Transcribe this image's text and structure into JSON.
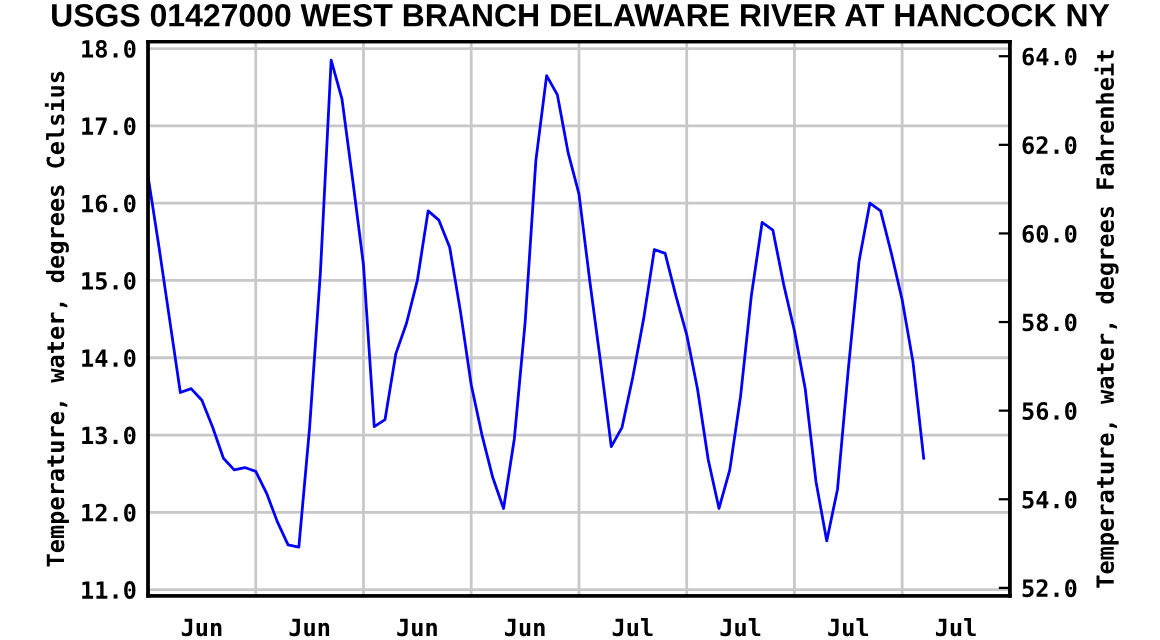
{
  "chart_data": {
    "type": "line",
    "title": "USGS 01427000 WEST BRANCH DELAWARE RIVER AT HANCOCK NY",
    "ylabel": "Temperature, water, degrees Celsius",
    "y2label": "Temperature, water, degrees Fahrenheit",
    "categories": [
      null,
      null,
      null,
      null,
      null,
      "Jun",
      null,
      null,
      null,
      null,
      null,
      null,
      null,
      null,
      null,
      "Jun",
      null,
      null,
      null,
      null,
      null,
      null,
      null,
      null,
      null,
      "Jun",
      null,
      null,
      null,
      null,
      null,
      null,
      null,
      null,
      null,
      "Jun",
      null,
      null,
      null,
      null,
      null,
      null,
      null,
      null,
      null,
      "Jul",
      null,
      null,
      null,
      null,
      null,
      null,
      null,
      null,
      null,
      "Jul",
      null,
      null,
      null,
      null,
      null,
      null,
      null,
      null,
      null,
      "Jul",
      null,
      null,
      null,
      null,
      null,
      null,
      null,
      null,
      null,
      "Jul",
      null,
      null,
      null,
      null,
      null
    ],
    "ylim": [
      10.92,
      18.09
    ],
    "yticks": [
      {
        "value": 11,
        "label": "11.0"
      },
      {
        "value": 12,
        "label": "12.0"
      },
      {
        "value": 13,
        "label": "13.0"
      },
      {
        "value": 14,
        "label": "14.0"
      },
      {
        "value": 15,
        "label": "15.0"
      },
      {
        "value": 16,
        "label": "16.0"
      },
      {
        "value": 17,
        "label": "17.0"
      },
      {
        "value": 18,
        "label": "18.0"
      }
    ],
    "y2lim": [
      51.82,
      64.33
    ],
    "y2ticks": [
      {
        "value": 52,
        "label": "52.0"
      },
      {
        "value": 54,
        "label": "54.0"
      },
      {
        "value": 56,
        "label": "56.0"
      },
      {
        "value": 58,
        "label": "58.0"
      },
      {
        "value": 60,
        "label": "60.0"
      },
      {
        "value": 62,
        "label": "62.0"
      },
      {
        "value": 64,
        "label": "64.0"
      }
    ],
    "grid": true,
    "series": [
      {
        "color": "#0000ff",
        "values": [
          16.35,
          15.45,
          14.5,
          13.55,
          13.6,
          13.45,
          13.1,
          12.7,
          12.55,
          12.58,
          12.53,
          12.25,
          11.88,
          11.58,
          11.55,
          13.1,
          15.1,
          17.85,
          17.35,
          16.3,
          15.2,
          13.11,
          13.2,
          14.05,
          14.45,
          15.0,
          15.9,
          15.78,
          15.43,
          14.6,
          13.65,
          13.0,
          12.45,
          12.05,
          12.95,
          14.45,
          16.55,
          17.65,
          17.4,
          16.65,
          16.12,
          15.0,
          13.95,
          12.85,
          13.1,
          13.75,
          14.5,
          15.4,
          15.35,
          14.8,
          14.3,
          13.6,
          12.68,
          12.05,
          12.55,
          13.5,
          14.8,
          15.75,
          15.65,
          14.95,
          14.35,
          13.6,
          12.4,
          11.63,
          12.3,
          13.85,
          15.25,
          16.0,
          15.9,
          15.35,
          14.75,
          13.95,
          12.7,
          null,
          null,
          null,
          null,
          null,
          null,
          null,
          null
        ]
      }
    ]
  }
}
